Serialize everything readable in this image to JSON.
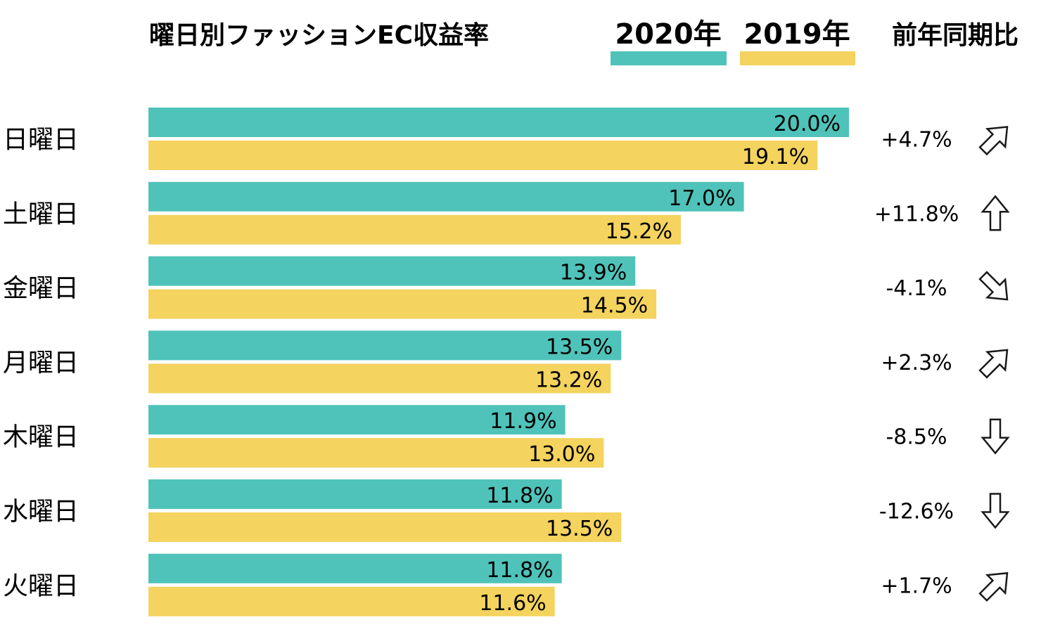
{
  "chart_data": {
    "type": "bar",
    "orientation": "horizontal",
    "title": "曜日別ファッションEC収益率",
    "yoy_header": "前年同期比",
    "categories": [
      "日曜日",
      "土曜日",
      "金曜日",
      "月曜日",
      "木曜日",
      "水曜日",
      "火曜日"
    ],
    "series": [
      {
        "name": "2020年",
        "color": "#4fc3b9",
        "values": [
          20.0,
          17.0,
          13.9,
          13.5,
          11.9,
          11.8,
          11.8
        ],
        "labels": [
          "20.0%",
          "17.0%",
          "13.9%",
          "13.5%",
          "11.9%",
          "11.8%",
          "11.8%"
        ]
      },
      {
        "name": "2019年",
        "color": "#f4d35e",
        "values": [
          19.1,
          15.2,
          14.5,
          13.2,
          13.0,
          13.5,
          11.6
        ],
        "labels": [
          "19.1%",
          "15.2%",
          "14.5%",
          "13.2%",
          "13.0%",
          "13.5%",
          "11.6%"
        ]
      }
    ],
    "yoy": [
      {
        "label": "+4.7%",
        "value": 4.7,
        "arrow": "up-right"
      },
      {
        "label": "+11.8%",
        "value": 11.8,
        "arrow": "up"
      },
      {
        "label": "-4.1%",
        "value": -4.1,
        "arrow": "down-right"
      },
      {
        "label": "+2.3%",
        "value": 2.3,
        "arrow": "up-right"
      },
      {
        "label": "-8.5%",
        "value": -8.5,
        "arrow": "down"
      },
      {
        "label": "-12.6%",
        "value": -12.6,
        "arrow": "down"
      },
      {
        "label": "+1.7%",
        "value": 1.7,
        "arrow": "up-right"
      }
    ],
    "xlim": [
      0,
      20
    ]
  }
}
